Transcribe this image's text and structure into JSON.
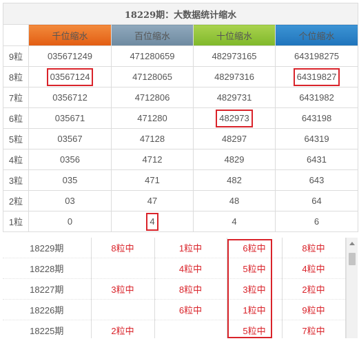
{
  "title": "18229期：大数据统计缩水",
  "headers": [
    "千位缩水",
    "百位缩水",
    "十位缩水",
    "个位缩水"
  ],
  "rows": [
    {
      "label": "9粒",
      "cells": [
        "035671249",
        "471280659",
        "482973165",
        "643198275"
      ]
    },
    {
      "label": "8粒",
      "cells": [
        "03567124",
        "47128065",
        "48297316",
        "64319827"
      ]
    },
    {
      "label": "7粒",
      "cells": [
        "0356712",
        "4712806",
        "4829731",
        "6431982"
      ]
    },
    {
      "label": "6粒",
      "cells": [
        "035671",
        "471280",
        "482973",
        "643198"
      ]
    },
    {
      "label": "5粒",
      "cells": [
        "03567",
        "47128",
        "48297",
        "64319"
      ]
    },
    {
      "label": "4粒",
      "cells": [
        "0356",
        "4712",
        "4829",
        "6431"
      ]
    },
    {
      "label": "3粒",
      "cells": [
        "035",
        "471",
        "482",
        "643"
      ]
    },
    {
      "label": "2粒",
      "cells": [
        "03",
        "47",
        "48",
        "64"
      ]
    },
    {
      "label": "1粒",
      "cells": [
        "0",
        "4",
        "4",
        "6"
      ]
    }
  ],
  "history": [
    {
      "period": "18229期",
      "hits": [
        "8粒中",
        "1粒中",
        "6粒中",
        "8粒中"
      ]
    },
    {
      "period": "18228期",
      "hits": [
        "",
        "4粒中",
        "5粒中",
        "4粒中"
      ]
    },
    {
      "period": "18227期",
      "hits": [
        "3粒中",
        "8粒中",
        "3粒中",
        "2粒中"
      ]
    },
    {
      "period": "18226期",
      "hits": [
        "",
        "6粒中",
        "1粒中",
        "9粒中"
      ]
    },
    {
      "period": "18225期",
      "hits": [
        "2粒中",
        "",
        "5粒中",
        "7粒中"
      ]
    }
  ],
  "colors": {
    "highlight": "#d9232a"
  }
}
